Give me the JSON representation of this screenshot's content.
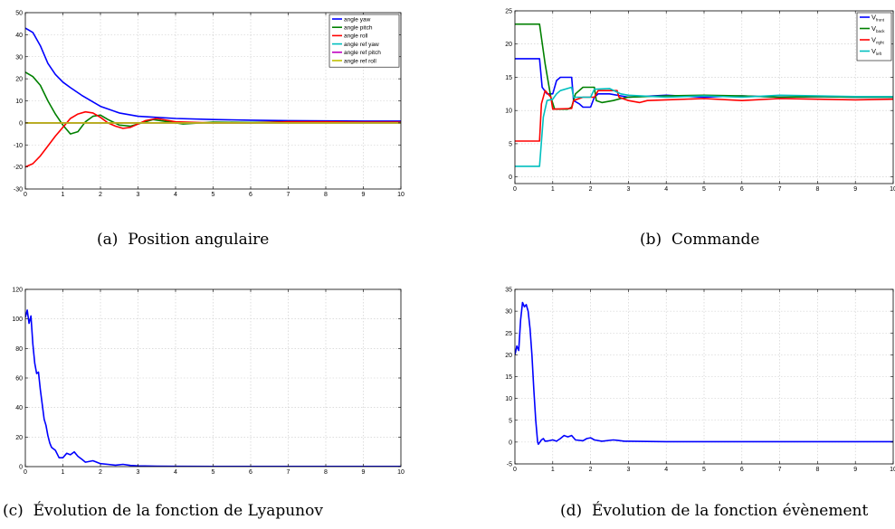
{
  "colors": {
    "blue": "#0000ff",
    "green": "#008000",
    "red": "#ff0000",
    "cyan": "#00bfbf",
    "magenta": "#bf00bf",
    "olive": "#bfbf00",
    "grid": "#c8c8c8"
  },
  "captions": [
    {
      "label": "(a)",
      "text": "Position angulaire"
    },
    {
      "label": "(b)",
      "text": "Commande"
    },
    {
      "label": "(c)",
      "text": "Évolution de la fonction de Lyapunov"
    },
    {
      "label": "(d)",
      "text": "Évolution de la fonction évènement"
    }
  ],
  "chart_data": [
    {
      "type": "line",
      "xlim": [
        0,
        10
      ],
      "ylim": [
        -30,
        50
      ],
      "xticks": [
        0,
        1,
        2,
        3,
        4,
        5,
        6,
        7,
        8,
        9,
        10
      ],
      "yticks": [
        -30,
        -20,
        -10,
        0,
        10,
        20,
        30,
        40,
        50
      ],
      "grid": true,
      "legend_position": "top-right",
      "series": [
        {
          "name": "angle yaw",
          "color": "#0000ff",
          "x": [
            0,
            0.2,
            0.4,
            0.6,
            0.8,
            1.0,
            1.2,
            1.5,
            2.0,
            2.5,
            3.0,
            3.5,
            4.0,
            5.0,
            6.0,
            7.0,
            8.0,
            9.0,
            10.0
          ],
          "y": [
            43,
            41,
            35,
            27,
            22,
            18.5,
            16,
            12.5,
            7.5,
            4.5,
            3,
            2.5,
            2,
            1.5,
            1.2,
            1.0,
            0.9,
            0.8,
            0.8
          ]
        },
        {
          "name": "angle pitch",
          "color": "#008000",
          "x": [
            0,
            0.2,
            0.4,
            0.6,
            0.8,
            1.0,
            1.2,
            1.4,
            1.6,
            1.8,
            2.0,
            2.2,
            2.5,
            2.8,
            3.0,
            3.4,
            3.8,
            4.2,
            5.0,
            6.0,
            7.0,
            8.0,
            9.0,
            10.0
          ],
          "y": [
            23,
            21,
            17,
            10,
            4,
            -1,
            -5,
            -4,
            0.5,
            3,
            3.5,
            1.5,
            -1,
            -1.5,
            -0.5,
            1.5,
            0.5,
            -0.5,
            0.3,
            0.2,
            0.5,
            0.3,
            0.2,
            0.2
          ]
        },
        {
          "name": "angle roll",
          "color": "#ff0000",
          "x": [
            0,
            0.2,
            0.4,
            0.6,
            0.8,
            1.0,
            1.2,
            1.4,
            1.6,
            1.8,
            2.0,
            2.2,
            2.4,
            2.6,
            2.8,
            3.0,
            3.2,
            3.5,
            4.0,
            5.0,
            6.0,
            7.0,
            8.0,
            9.0,
            10.0
          ],
          "y": [
            -20,
            -18.5,
            -15,
            -10.5,
            -6,
            -2,
            2,
            4,
            5,
            4.5,
            2.5,
            0,
            -1.5,
            -2.5,
            -2,
            -0.5,
            1,
            2,
            0.5,
            0,
            0,
            0.5,
            0.5,
            0.3,
            0.3
          ]
        },
        {
          "name": "angle ref yaw",
          "color": "#00bfbf",
          "x": [
            0,
            10
          ],
          "y": [
            0,
            0
          ]
        },
        {
          "name": "angle ref pitch",
          "color": "#bf00bf",
          "x": [
            0,
            10
          ],
          "y": [
            0,
            0
          ]
        },
        {
          "name": "angle ref roll",
          "color": "#bfbf00",
          "x": [
            0,
            10
          ],
          "y": [
            0,
            0
          ]
        }
      ]
    },
    {
      "type": "line",
      "xlim": [
        0,
        10
      ],
      "ylim": [
        -1,
        25
      ],
      "xticks": [
        0,
        1,
        2,
        3,
        4,
        5,
        6,
        7,
        8,
        9,
        10
      ],
      "yticks": [
        0,
        5,
        10,
        15,
        20,
        25
      ],
      "grid": true,
      "legend_position": "top-right",
      "series": [
        {
          "name": "V_front",
          "legend_main": "V",
          "legend_sub": "front",
          "color": "#0000ff",
          "x": [
            0,
            0.65,
            0.72,
            0.85,
            1.0,
            1.1,
            1.2,
            1.3,
            1.5,
            1.55,
            1.7,
            1.8,
            2.0,
            2.1,
            2.2,
            2.5,
            2.8,
            3.0,
            4.0,
            5.0,
            6.0,
            7.0,
            8.0,
            9.0,
            10.0
          ],
          "y": [
            17.8,
            17.8,
            13.5,
            12.5,
            12.5,
            14.5,
            15,
            15,
            15,
            11.5,
            11,
            10.5,
            10.5,
            12,
            12.5,
            12.5,
            12.2,
            12,
            12.3,
            12,
            12.2,
            12,
            12.1,
            12,
            12
          ]
        },
        {
          "name": "V_back",
          "legend_main": "V",
          "legend_sub": "back",
          "color": "#008000",
          "x": [
            0,
            0.65,
            0.8,
            0.95,
            1.05,
            1.4,
            1.5,
            1.6,
            1.8,
            2.1,
            2.15,
            2.3,
            2.6,
            2.8,
            3.0,
            4.0,
            5.0,
            6.0,
            7.0,
            8.0,
            9.0,
            10.0
          ],
          "y": [
            23,
            23,
            17,
            12,
            10.2,
            10.2,
            10.5,
            12.5,
            13.5,
            13.5,
            11.5,
            11.2,
            11.5,
            11.8,
            12,
            12.2,
            12.3,
            12.2,
            12,
            12.1,
            12,
            12
          ]
        },
        {
          "name": "V_right",
          "legend_main": "V",
          "legend_sub": "right",
          "color": "#ff0000",
          "x": [
            0,
            0.65,
            0.7,
            0.8,
            0.95,
            1.0,
            1.5,
            1.55,
            1.8,
            2.1,
            2.2,
            2.5,
            2.7,
            2.75,
            3.0,
            3.3,
            3.5,
            4.0,
            5.0,
            6.0,
            7.0,
            8.0,
            9.0,
            10.0
          ],
          "y": [
            5.4,
            5.4,
            11,
            13,
            12,
            10.2,
            10.3,
            11.5,
            12,
            12,
            13,
            13,
            13,
            12,
            11.5,
            11.2,
            11.5,
            11.6,
            11.8,
            11.5,
            11.8,
            11.7,
            11.6,
            11.7
          ]
        },
        {
          "name": "V_left",
          "legend_main": "V",
          "legend_sub": "left",
          "color": "#00bfbf",
          "x": [
            0,
            0.65,
            0.75,
            0.85,
            1.0,
            1.1,
            1.2,
            1.5,
            1.55,
            2.0,
            2.1,
            2.5,
            2.8,
            3.0,
            4.0,
            5.0,
            6.0,
            7.0,
            8.0,
            9.0,
            10.0
          ],
          "y": [
            1.6,
            1.6,
            9,
            11.5,
            11.7,
            12.5,
            13,
            13.5,
            12,
            12,
            13.2,
            13.3,
            12.5,
            12.3,
            12,
            12.2,
            12,
            12.3,
            12.2,
            12.1,
            12.1
          ]
        }
      ]
    },
    {
      "type": "line",
      "xlim": [
        0,
        10
      ],
      "ylim": [
        0,
        120
      ],
      "xticks": [
        0,
        1,
        2,
        3,
        4,
        5,
        6,
        7,
        8,
        9,
        10
      ],
      "yticks": [
        0,
        20,
        40,
        60,
        80,
        100,
        120
      ],
      "grid": true,
      "series": [
        {
          "name": "",
          "color": "#0000ff",
          "x": [
            0,
            0.05,
            0.1,
            0.15,
            0.2,
            0.25,
            0.3,
            0.35,
            0.4,
            0.45,
            0.5,
            0.55,
            0.6,
            0.65,
            0.7,
            0.8,
            0.9,
            1.0,
            1.1,
            1.2,
            1.3,
            1.4,
            1.5,
            1.6,
            1.8,
            2.0,
            2.2,
            2.4,
            2.6,
            2.8,
            3.0,
            3.5,
            4.0,
            5.0,
            6.0,
            7.0,
            8.0,
            9.0,
            10.0
          ],
          "y": [
            101,
            106,
            97,
            102,
            83,
            70,
            63,
            64,
            52,
            42,
            32,
            28,
            21,
            16,
            13,
            11,
            6,
            6,
            9,
            8,
            10,
            7,
            5,
            3,
            4,
            2,
            1.5,
            1,
            1.5,
            0.8,
            0.5,
            0.3,
            0.2,
            0.1,
            0.1,
            0.1,
            0.1,
            0.1,
            0.1
          ]
        }
      ]
    },
    {
      "type": "line",
      "xlim": [
        0,
        10
      ],
      "ylim": [
        -5,
        35
      ],
      "xticks": [
        0,
        1,
        2,
        3,
        4,
        5,
        6,
        7,
        8,
        9,
        10
      ],
      "yticks": [
        -5,
        0,
        5,
        10,
        15,
        20,
        25,
        30,
        35
      ],
      "grid": true,
      "series": [
        {
          "name": "",
          "color": "#0000ff",
          "x": [
            0,
            0.05,
            0.1,
            0.15,
            0.2,
            0.25,
            0.3,
            0.35,
            0.4,
            0.45,
            0.5,
            0.55,
            0.6,
            0.62,
            0.7,
            0.75,
            0.8,
            0.9,
            1.0,
            1.1,
            1.2,
            1.3,
            1.4,
            1.5,
            1.6,
            1.8,
            1.9,
            2.0,
            2.1,
            2.3,
            2.6,
            2.7,
            2.9,
            3.0,
            4.0,
            5.0,
            6.0,
            7.0,
            8.0,
            9.0,
            10.0
          ],
          "y": [
            20,
            22,
            21,
            28,
            32,
            31,
            31.5,
            30,
            26,
            20,
            12,
            5,
            0,
            -0.5,
            0.5,
            0.8,
            0.2,
            0.3,
            0.5,
            0.2,
            0.8,
            1.5,
            1.2,
            1.5,
            0.5,
            0.3,
            0.8,
            1,
            0.5,
            0.2,
            0.5,
            0.4,
            0.2,
            0.2,
            0.1,
            0.1,
            0.1,
            0.1,
            0.1,
            0.1,
            0.1
          ]
        }
      ]
    }
  ]
}
